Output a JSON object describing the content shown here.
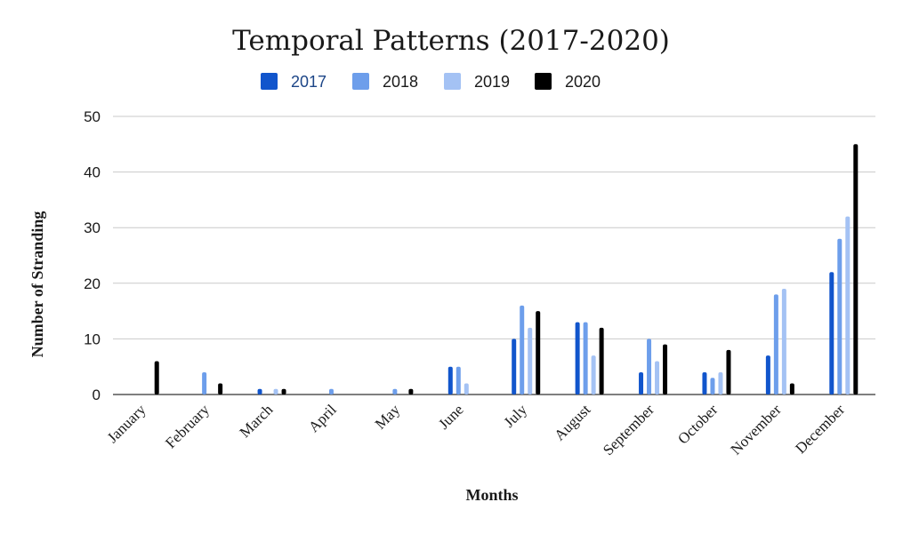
{
  "chart_data": {
    "type": "bar",
    "title": "Temporal Patterns (2017-2020)",
    "xlabel": "Months",
    "ylabel": "Number of Stranding",
    "ylim": [
      0,
      50
    ],
    "yticks": [
      0,
      10,
      20,
      30,
      40,
      50
    ],
    "grid": true,
    "legend_position": "top",
    "categories": [
      "January",
      "February",
      "March",
      "April",
      "May",
      "June",
      "July",
      "August",
      "September",
      "October",
      "November",
      "December"
    ],
    "series": [
      {
        "name": "2017",
        "color": "#1155cc",
        "values": [
          0,
          0,
          1,
          0,
          0,
          5,
          10,
          13,
          4,
          4,
          7,
          22
        ]
      },
      {
        "name": "2018",
        "color": "#6d9eeb",
        "values": [
          0,
          4,
          0,
          1,
          1,
          5,
          16,
          13,
          10,
          3,
          18,
          28
        ]
      },
      {
        "name": "2019",
        "color": "#a4c2f4",
        "values": [
          0,
          0,
          1,
          0,
          0,
          2,
          12,
          7,
          6,
          4,
          19,
          32
        ]
      },
      {
        "name": "2020",
        "color": "#000000",
        "values": [
          6,
          2,
          1,
          0,
          1,
          0,
          15,
          12,
          9,
          8,
          2,
          45
        ]
      }
    ]
  }
}
